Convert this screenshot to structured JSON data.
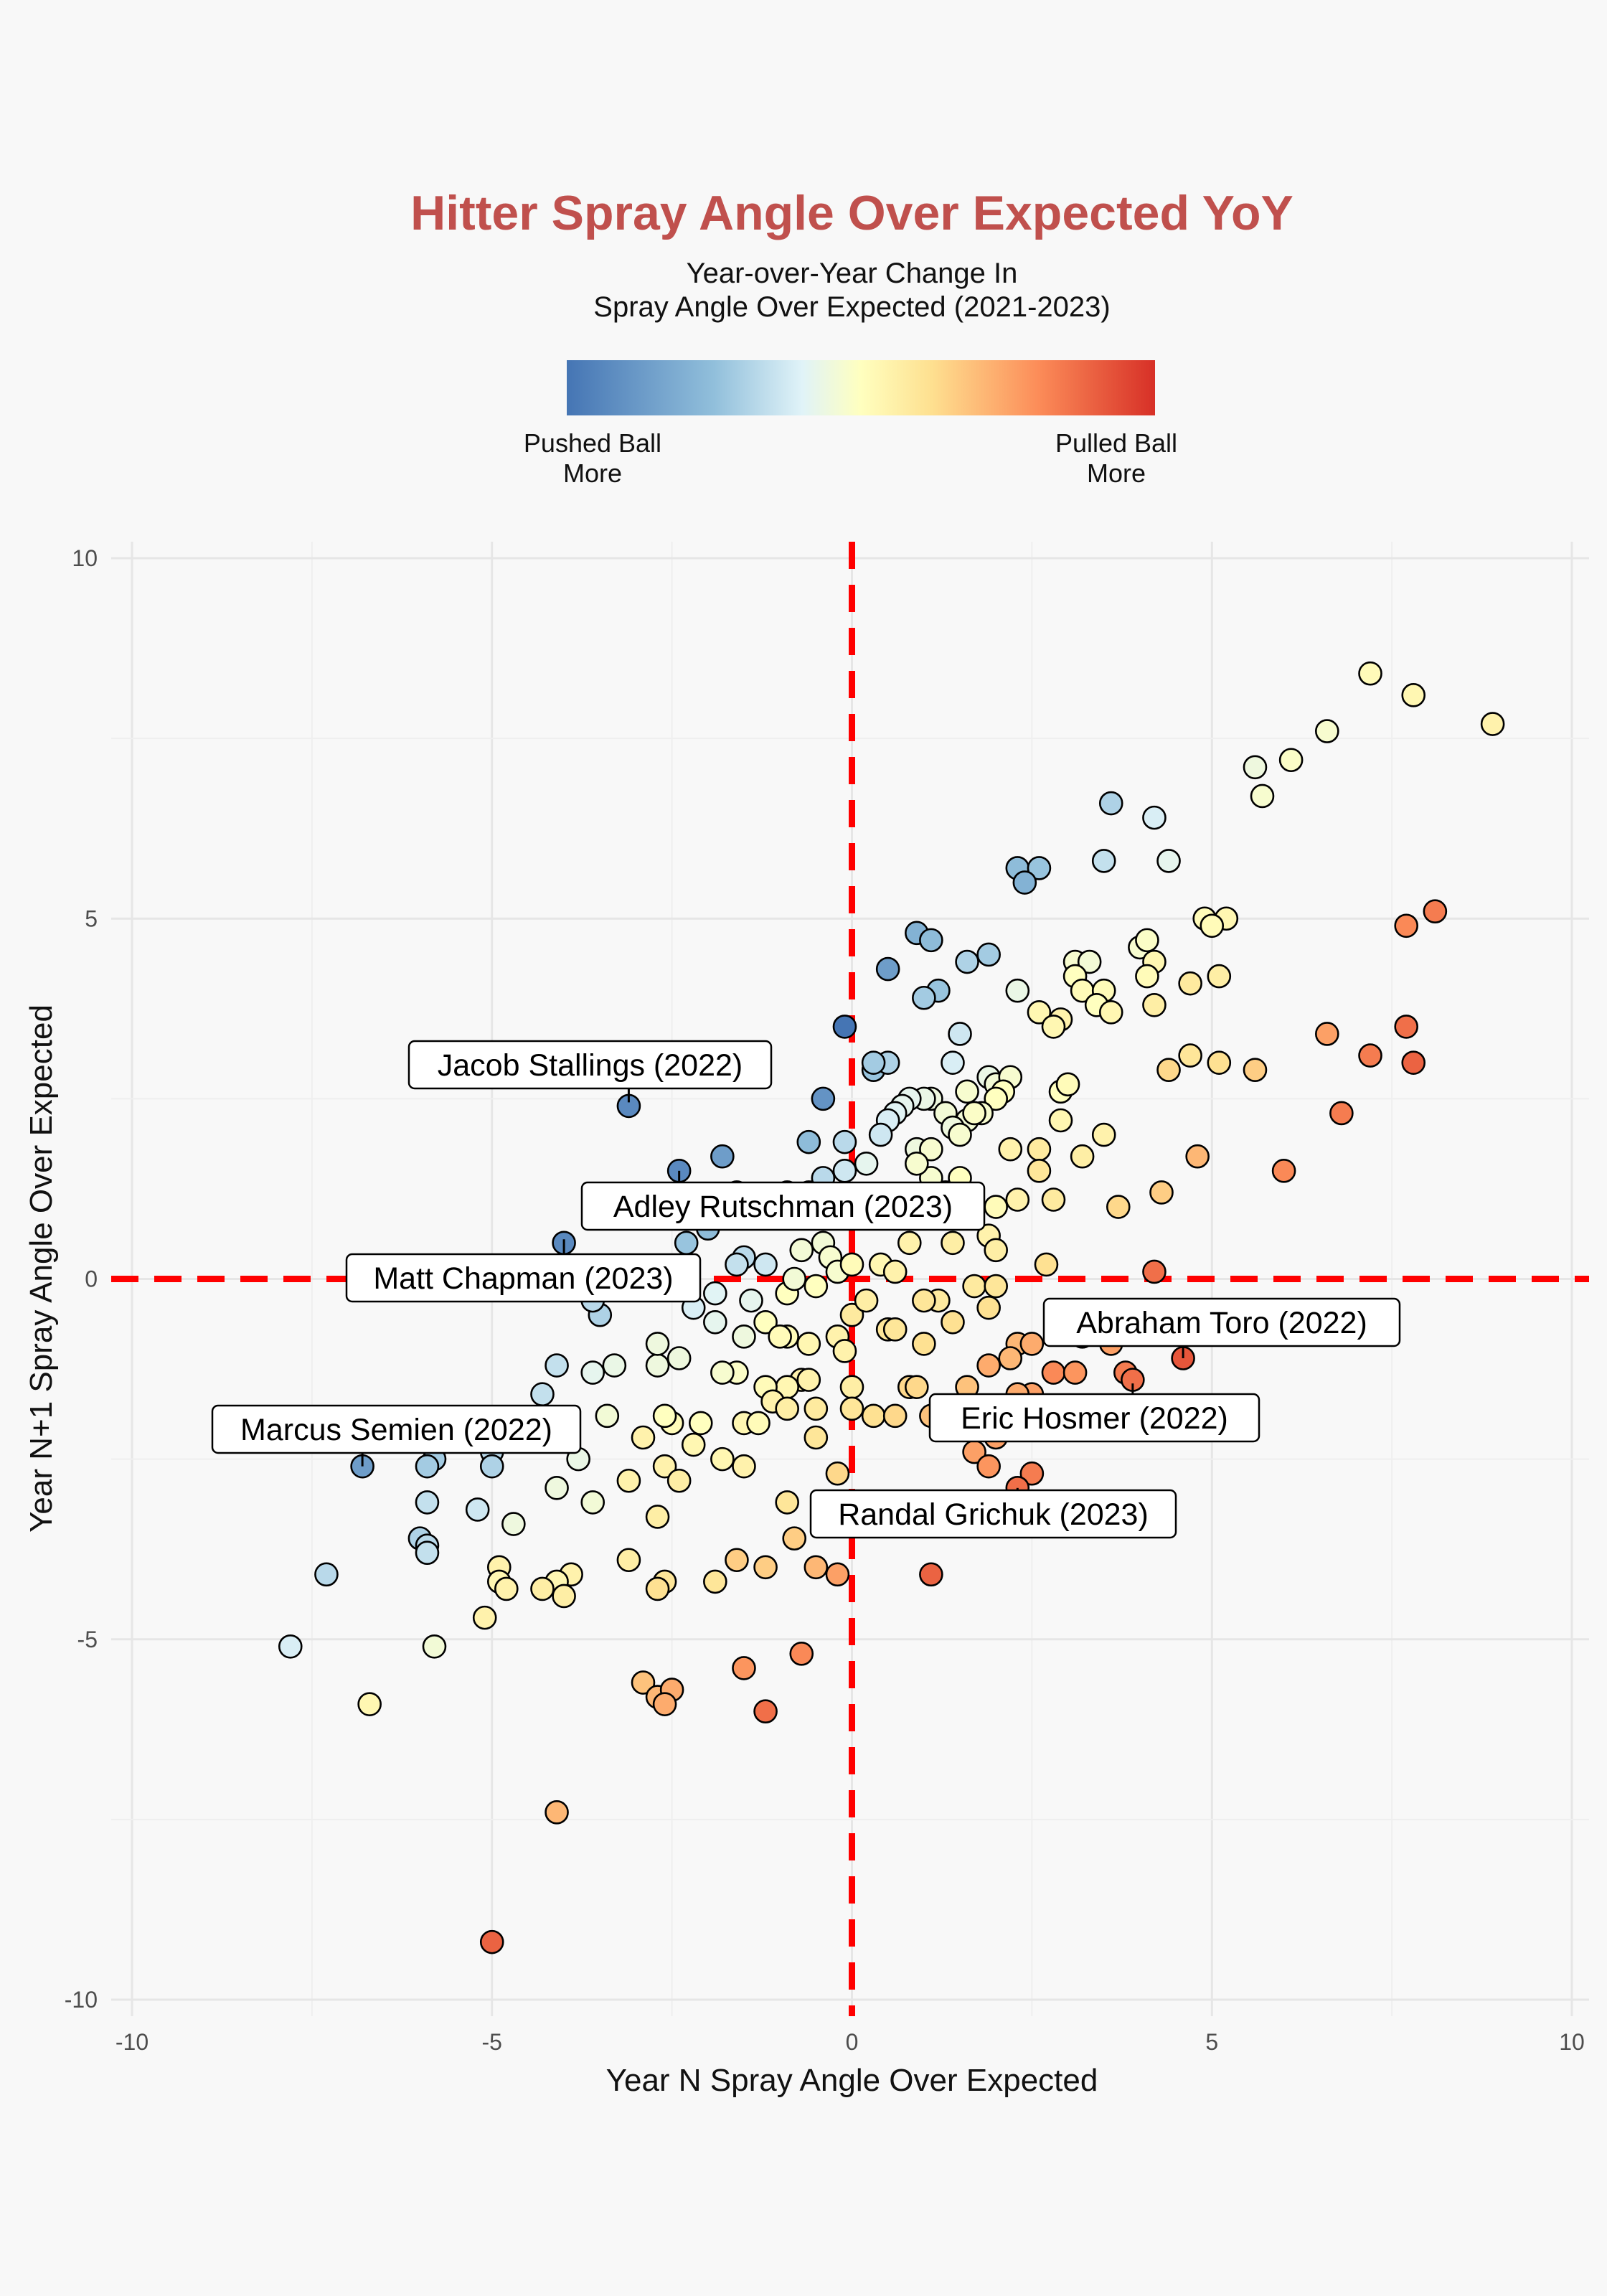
{
  "chart_data": {
    "type": "scatter",
    "title": "Hitter Spray Angle Over Expected YoY",
    "subtitle_lines": [
      "Year-over-Year Change In",
      "Spray Angle Over Expected (2021-2023)"
    ],
    "colorbar": {
      "left_label_lines": [
        "Pushed Ball",
        "More"
      ],
      "right_label_lines": [
        "Pulled Ball",
        "More"
      ],
      "colors": [
        "#4575b4",
        "#91bfdb",
        "#e0f3f8",
        "#ffffbf",
        "#fee090",
        "#fc8d59",
        "#d73027"
      ]
    },
    "xlabel": "Year N Spray Angle Over Expected",
    "ylabel": "Year N+1 Spray Angle Over Expected",
    "xlim": [
      -10,
      10
    ],
    "ylim": [
      -10,
      10
    ],
    "xticks": [
      -10,
      -5,
      0,
      5,
      10
    ],
    "yticks": [
      -10,
      -5,
      0,
      5,
      10
    ],
    "grid": true,
    "reference_lines": {
      "x": 0,
      "y": 0,
      "color": "#ff0000",
      "style": "dashed"
    },
    "points": [
      [
        7.2,
        8.4,
        0.1
      ],
      [
        7.8,
        8.1,
        0.2
      ],
      [
        8.9,
        7.7,
        0.3
      ],
      [
        6.6,
        7.6,
        -0.2
      ],
      [
        6.1,
        7.2,
        -0.1
      ],
      [
        5.6,
        7.1,
        -0.4
      ],
      [
        5.7,
        6.7,
        -0.2
      ],
      [
        3.6,
        6.6,
        -1.2
      ],
      [
        4.2,
        6.4,
        -0.8
      ],
      [
        2.3,
        5.7,
        -1.5
      ],
      [
        2.6,
        5.7,
        -1.4
      ],
      [
        2.4,
        5.5,
        -1.6
      ],
      [
        3.5,
        5.8,
        -1.0
      ],
      [
        4.4,
        5.8,
        -0.6
      ],
      [
        4.9,
        5.0,
        0.1
      ],
      [
        5.2,
        5.0,
        0.2
      ],
      [
        5.0,
        4.9,
        0.1
      ],
      [
        7.7,
        4.9,
        1.5
      ],
      [
        8.1,
        5.1,
        1.6
      ],
      [
        0.9,
        4.8,
        -1.6
      ],
      [
        1.1,
        4.7,
        -1.5
      ],
      [
        1.9,
        4.5,
        -1.3
      ],
      [
        1.6,
        4.4,
        -1.2
      ],
      [
        0.5,
        4.3,
        -1.8
      ],
      [
        1.2,
        4.0,
        -1.4
      ],
      [
        1.0,
        3.9,
        -1.3
      ],
      [
        3.1,
        4.4,
        -0.2
      ],
      [
        3.3,
        4.4,
        -0.3
      ],
      [
        4.0,
        4.6,
        -0.2
      ],
      [
        4.1,
        4.7,
        -0.1
      ],
      [
        4.2,
        4.4,
        0.2
      ],
      [
        3.1,
        4.2,
        0.0
      ],
      [
        4.1,
        4.2,
        0.1
      ],
      [
        4.7,
        4.1,
        0.5
      ],
      [
        5.1,
        4.2,
        0.4
      ],
      [
        3.2,
        4.0,
        0.1
      ],
      [
        3.5,
        4.0,
        0.1
      ],
      [
        3.4,
        3.8,
        0.0
      ],
      [
        3.6,
        3.7,
        0.2
      ],
      [
        2.3,
        4.0,
        -0.5
      ],
      [
        2.6,
        3.7,
        0.2
      ],
      [
        2.9,
        3.6,
        0.3
      ],
      [
        2.8,
        3.5,
        0.2
      ],
      [
        4.2,
        3.8,
        0.4
      ],
      [
        6.6,
        3.4,
        1.3
      ],
      [
        7.7,
        3.5,
        1.7
      ],
      [
        7.2,
        3.1,
        1.6
      ],
      [
        7.8,
        3.0,
        1.8
      ],
      [
        6.8,
        2.3,
        1.6
      ],
      [
        5.6,
        2.9,
        0.9
      ],
      [
        5.1,
        3.0,
        0.7
      ],
      [
        4.7,
        3.1,
        0.6
      ],
      [
        4.4,
        2.9,
        0.8
      ],
      [
        -0.1,
        3.5,
        -2.2
      ],
      [
        0.3,
        2.9,
        -1.4
      ],
      [
        0.5,
        3.0,
        -1.2
      ],
      [
        0.3,
        3.0,
        -1.3
      ],
      [
        1.5,
        3.4,
        -0.9
      ],
      [
        1.4,
        3.0,
        -0.8
      ],
      [
        1.9,
        2.8,
        -0.5
      ],
      [
        2.0,
        2.7,
        -0.3
      ],
      [
        2.2,
        2.8,
        -0.2
      ],
      [
        2.1,
        2.6,
        0.0
      ],
      [
        2.0,
        2.5,
        0.0
      ],
      [
        1.6,
        2.6,
        -0.2
      ],
      [
        1.1,
        2.5,
        -0.4
      ],
      [
        1.0,
        2.5,
        -0.5
      ],
      [
        0.8,
        2.5,
        -0.6
      ],
      [
        0.7,
        2.4,
        -0.6
      ],
      [
        0.6,
        2.3,
        -0.7
      ],
      [
        0.5,
        2.2,
        -0.8
      ],
      [
        2.9,
        2.6,
        0.0
      ],
      [
        3.0,
        2.7,
        0.1
      ],
      [
        2.9,
        2.2,
        0.2
      ],
      [
        3.5,
        2.0,
        0.3
      ],
      [
        1.6,
        2.2,
        -0.3
      ],
      [
        1.8,
        2.3,
        -0.2
      ],
      [
        1.3,
        2.3,
        -0.3
      ],
      [
        1.4,
        2.1,
        -0.4
      ],
      [
        1.7,
        2.3,
        -0.1
      ],
      [
        1.5,
        2.0,
        -0.2
      ],
      [
        0.4,
        2.0,
        -0.9
      ],
      [
        0.9,
        1.8,
        -0.4
      ],
      [
        1.1,
        1.8,
        -0.2
      ],
      [
        2.2,
        1.8,
        0.3
      ],
      [
        2.6,
        1.8,
        0.5
      ],
      [
        2.6,
        1.5,
        0.6
      ],
      [
        3.2,
        1.7,
        0.4
      ],
      [
        4.8,
        1.7,
        1.1
      ],
      [
        6.0,
        1.5,
        1.5
      ],
      [
        4.3,
        1.2,
        0.9
      ],
      [
        3.7,
        1.0,
        0.8
      ],
      [
        2.8,
        1.1,
        0.5
      ],
      [
        2.3,
        1.1,
        0.3
      ],
      [
        2.0,
        1.0,
        0.1
      ],
      [
        1.5,
        1.4,
        0.0
      ],
      [
        1.1,
        1.4,
        -0.2
      ],
      [
        1.3,
        1.2,
        0.0
      ],
      [
        0.9,
        1.6,
        -0.2
      ],
      [
        0.2,
        1.6,
        -0.6
      ],
      [
        -0.1,
        1.5,
        -0.9
      ],
      [
        -0.6,
        1.9,
        -1.5
      ],
      [
        -0.4,
        2.5,
        -1.9
      ],
      [
        -0.1,
        1.9,
        -1.1
      ],
      [
        -0.4,
        1.4,
        -1.1
      ],
      [
        -0.6,
        1.2,
        -0.9
      ],
      [
        -0.9,
        1.2,
        -1.0
      ],
      [
        -1.1,
        1.0,
        -1.0
      ],
      [
        -1.8,
        1.7,
        -1.8
      ],
      [
        -2.4,
        1.5,
        -2.0
      ],
      [
        -1.6,
        1.2,
        -1.3
      ],
      [
        -2.2,
        0.9,
        -1.7
      ],
      [
        -2.5,
        0.9,
        -1.5
      ],
      [
        -2.0,
        0.7,
        -1.5
      ],
      [
        -2.3,
        0.5,
        -1.4
      ],
      [
        -1.5,
        0.3,
        -1.1
      ],
      [
        -1.2,
        0.2,
        -0.9
      ],
      [
        -1.6,
        0.2,
        -1.0
      ],
      [
        -1.4,
        -0.3,
        -0.6
      ],
      [
        -1.9,
        -0.2,
        -0.7
      ],
      [
        -2.2,
        -0.4,
        -0.8
      ],
      [
        -1.9,
        -0.6,
        -0.6
      ],
      [
        -1.5,
        -0.8,
        -0.4
      ],
      [
        -0.4,
        0.5,
        -0.3
      ],
      [
        -0.3,
        0.3,
        -0.2
      ],
      [
        -0.2,
        0.1,
        -0.2
      ],
      [
        -0.5,
        -0.1,
        0.0
      ],
      [
        -0.7,
        0.4,
        -0.3
      ],
      [
        -0.9,
        -0.2,
        0.0
      ],
      [
        -0.8,
        0.0,
        -0.3
      ],
      [
        0.0,
        0.2,
        0.1
      ],
      [
        0.4,
        0.2,
        0.2
      ],
      [
        0.6,
        0.1,
        0.3
      ],
      [
        0.8,
        0.5,
        0.3
      ],
      [
        1.4,
        0.5,
        0.4
      ],
      [
        1.9,
        0.6,
        0.3
      ],
      [
        2.0,
        0.4,
        0.4
      ],
      [
        2.7,
        0.2,
        0.7
      ],
      [
        4.2,
        0.1,
        1.7
      ],
      [
        1.7,
        -0.1,
        0.5
      ],
      [
        2.0,
        -0.1,
        0.6
      ],
      [
        1.9,
        -0.4,
        0.7
      ],
      [
        1.2,
        -0.3,
        0.5
      ],
      [
        1.0,
        -0.3,
        0.6
      ],
      [
        1.4,
        -0.6,
        0.7
      ],
      [
        1.0,
        -0.9,
        0.7
      ],
      [
        0.5,
        -0.7,
        0.6
      ],
      [
        0.6,
        -0.7,
        0.6
      ],
      [
        2.3,
        -0.9,
        1.1
      ],
      [
        2.5,
        -0.9,
        1.2
      ],
      [
        2.2,
        -1.1,
        1.1
      ],
      [
        1.9,
        -1.2,
        1.2
      ],
      [
        2.8,
        -1.3,
        1.5
      ],
      [
        3.1,
        -1.3,
        1.4
      ],
      [
        3.8,
        -1.3,
        1.6
      ],
      [
        3.9,
        -1.4,
        1.7
      ],
      [
        4.6,
        -1.1,
        1.9
      ],
      [
        2.5,
        -1.6,
        1.3
      ],
      [
        2.3,
        -1.6,
        1.2
      ],
      [
        1.6,
        -1.5,
        1.0
      ],
      [
        0.8,
        -1.5,
        0.8
      ],
      [
        0.9,
        -1.5,
        0.8
      ],
      [
        0.0,
        -1.5,
        0.4
      ],
      [
        -0.7,
        -1.4,
        0.3
      ],
      [
        -0.6,
        -1.4,
        0.3
      ],
      [
        -0.9,
        -1.5,
        0.2
      ],
      [
        -1.2,
        -1.5,
        0.1
      ],
      [
        -1.1,
        -1.7,
        0.3
      ],
      [
        -0.9,
        -1.8,
        0.4
      ],
      [
        -0.5,
        -1.8,
        0.5
      ],
      [
        0.0,
        -1.8,
        0.6
      ],
      [
        0.3,
        -1.9,
        0.7
      ],
      [
        0.6,
        -1.9,
        0.8
      ],
      [
        1.1,
        -1.9,
        1.0
      ],
      [
        2.4,
        -2.0,
        1.2
      ],
      [
        2.0,
        -2.2,
        1.3
      ],
      [
        1.7,
        -2.4,
        1.3
      ],
      [
        1.9,
        -2.6,
        1.4
      ],
      [
        2.5,
        -2.7,
        1.6
      ],
      [
        2.3,
        -2.9,
        1.7
      ],
      [
        1.1,
        -4.1,
        1.8
      ],
      [
        -0.2,
        -4.1,
        1.3
      ],
      [
        -0.5,
        -4.0,
        1.1
      ],
      [
        -1.2,
        -4.0,
        0.9
      ],
      [
        -1.6,
        -3.9,
        0.9
      ],
      [
        -0.8,
        -3.6,
        0.9
      ],
      [
        -0.9,
        -3.1,
        0.6
      ],
      [
        -0.2,
        -2.7,
        0.8
      ],
      [
        -0.5,
        -2.2,
        0.6
      ],
      [
        -1.5,
        -2.6,
        0.3
      ],
      [
        -1.8,
        -2.5,
        0.2
      ],
      [
        -1.5,
        -2.0,
        0.2
      ],
      [
        -1.3,
        -2.0,
        0.1
      ],
      [
        -1.6,
        -1.3,
        -0.1
      ],
      [
        -1.8,
        -1.3,
        -0.2
      ],
      [
        -2.1,
        -2.0,
        0.0
      ],
      [
        -2.7,
        -1.2,
        -0.4
      ],
      [
        -2.7,
        -0.9,
        -0.4
      ],
      [
        -2.4,
        -1.1,
        -0.4
      ],
      [
        -2.5,
        -2.0,
        0.1
      ],
      [
        -2.6,
        -1.9,
        0.0
      ],
      [
        -2.2,
        -2.3,
        0.2
      ],
      [
        -2.9,
        -2.2,
        0.3
      ],
      [
        -2.6,
        -2.6,
        0.3
      ],
      [
        -2.4,
        -2.8,
        0.4
      ],
      [
        -3.1,
        -2.8,
        0.3
      ],
      [
        -3.4,
        -1.9,
        -0.3
      ],
      [
        -3.6,
        -1.3,
        -0.6
      ],
      [
        -3.3,
        -1.2,
        -0.5
      ],
      [
        -4.1,
        -1.2,
        -1.0
      ],
      [
        -4.3,
        -1.6,
        -1.0
      ],
      [
        -4.1,
        -2.0,
        -0.9
      ],
      [
        -3.8,
        -2.5,
        -0.5
      ],
      [
        -4.1,
        -2.9,
        -0.4
      ],
      [
        -3.6,
        -3.1,
        -0.3
      ],
      [
        -2.7,
        -3.3,
        0.4
      ],
      [
        -2.6,
        -4.2,
        0.6
      ],
      [
        -2.7,
        -4.3,
        0.7
      ],
      [
        -1.9,
        -4.2,
        0.6
      ],
      [
        -3.1,
        -3.9,
        0.4
      ],
      [
        -3.9,
        -4.1,
        0.3
      ],
      [
        -4.1,
        -4.2,
        0.2
      ],
      [
        -4.3,
        -4.3,
        0.4
      ],
      [
        -4.0,
        -4.4,
        0.4
      ],
      [
        -4.9,
        -4.0,
        0.3
      ],
      [
        -4.9,
        -4.2,
        0.2
      ],
      [
        -4.8,
        -4.3,
        0.3
      ],
      [
        -5.1,
        -4.7,
        0.3
      ],
      [
        -4.7,
        -3.4,
        -0.4
      ],
      [
        -5.2,
        -3.2,
        -0.9
      ],
      [
        -5.9,
        -3.1,
        -1.0
      ],
      [
        -6.0,
        -3.6,
        -1.2
      ],
      [
        -5.9,
        -3.7,
        -1.1
      ],
      [
        -5.9,
        -3.8,
        -1.0
      ],
      [
        -5.0,
        -2.4,
        -1.1
      ],
      [
        -5.0,
        -2.6,
        -1.2
      ],
      [
        -5.8,
        -2.5,
        -1.3
      ],
      [
        -5.9,
        -2.6,
        -1.3
      ],
      [
        -7.3,
        -4.1,
        -1.1
      ],
      [
        -7.8,
        -5.1,
        -0.8
      ],
      [
        -5.8,
        -5.1,
        -0.3
      ],
      [
        -6.7,
        -5.9,
        0.2
      ],
      [
        -6.8,
        -2.6,
        -1.8
      ],
      [
        -2.9,
        -5.6,
        1.0
      ],
      [
        -2.7,
        -5.8,
        1.1
      ],
      [
        -2.5,
        -5.7,
        1.2
      ],
      [
        -2.6,
        -5.9,
        1.2
      ],
      [
        -1.5,
        -5.4,
        1.4
      ],
      [
        -0.7,
        -5.2,
        1.5
      ],
      [
        -1.2,
        -6.0,
        1.7
      ],
      [
        -4.1,
        -7.4,
        1.1
      ],
      [
        -5.0,
        -9.2,
        1.8
      ],
      [
        -3.1,
        2.4,
        -2.0
      ],
      [
        -4.0,
        0.5,
        -2.0
      ],
      [
        -3.5,
        -0.5,
        -1.2
      ],
      [
        -3.6,
        -0.3,
        -1.1
      ],
      [
        0.0,
        -0.5,
        0.5
      ],
      [
        0.2,
        -0.3,
        0.4
      ],
      [
        -0.9,
        -0.8,
        0.1
      ],
      [
        -0.6,
        -0.9,
        0.2
      ],
      [
        -1.2,
        -0.6,
        0.0
      ],
      [
        -1.0,
        -0.8,
        0.1
      ],
      [
        -0.2,
        -0.8,
        0.3
      ],
      [
        -0.1,
        -1.0,
        0.3
      ],
      [
        3.9,
        -0.6,
        1.4
      ],
      [
        4.4,
        -0.7,
        1.3
      ],
      [
        3.2,
        -0.8,
        1.1
      ],
      [
        3.6,
        -0.9,
        1.3
      ]
    ],
    "annotations": [
      {
        "label": "Jacob Stallings (2022)",
        "x": -3.1,
        "y": 2.45
      },
      {
        "label": "Adley Rutschman (2023)",
        "x": -2.4,
        "y": 1.5
      },
      {
        "label": "Matt Chapman (2023)",
        "x": -4.0,
        "y": 0.55
      },
      {
        "label": "Abraham Toro (2022)",
        "x": 4.6,
        "y": -1.1
      },
      {
        "label": "Eric Hosmer (2022)",
        "x": 3.9,
        "y": -1.45
      },
      {
        "label": "Marcus Semien (2022)",
        "x": -6.8,
        "y": -2.6
      },
      {
        "label": "Randal Grichuk (2023)",
        "x": 2.3,
        "y": -2.9
      }
    ]
  }
}
